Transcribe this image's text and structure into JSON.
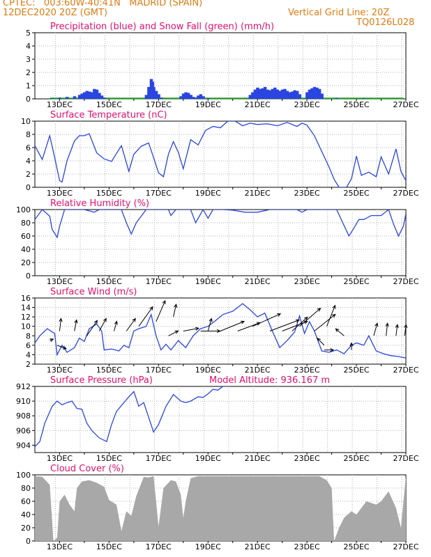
{
  "header": {
    "line1": "CPTEC:   003:60W-40:41N   MADRID (SPAIN)",
    "line2": "12DEC2020 20Z (GMT)",
    "grid_note": "Vertical Grid Line: 20Z",
    "code": "TQ0126L028"
  },
  "colors": {
    "header": "#e07a10",
    "title": "#e0106e",
    "series": "#2a45e0",
    "snow": "#1fa01f",
    "cloud": "#a8a8a8",
    "axis": "#000000",
    "grid": "#b0b0b0"
  },
  "x_labels": [
    "13DEC",
    "15DEC",
    "17DEC",
    "19DEC",
    "21DEC",
    "23DEC",
    "25DEC",
    "27DEC"
  ],
  "chart_data": [
    {
      "id": "precip",
      "type": "bar",
      "title": "Precipitation (blue) and Snow Fall (green) (mm/h)",
      "ylim": [
        0,
        5
      ],
      "yticks": [
        "0",
        "1",
        "2",
        "3",
        "4",
        "5"
      ],
      "x": [
        12.7,
        13.0,
        13.3,
        13.6,
        13.8,
        13.9,
        14.0,
        14.1,
        14.2,
        14.3,
        14.4,
        14.5,
        14.6,
        14.7,
        14.8,
        16.5,
        16.6,
        16.7,
        16.75,
        16.8,
        16.9,
        17.0,
        17.1,
        17.9,
        18.0,
        18.1,
        18.2,
        18.3,
        18.4,
        18.5,
        18.6,
        18.7,
        18.8,
        19.0,
        20.7,
        20.8,
        20.9,
        21.0,
        21.1,
        21.2,
        21.3,
        21.4,
        21.5,
        21.6,
        21.7,
        21.8,
        21.9,
        22.0,
        22.1,
        22.2,
        22.3,
        22.4,
        22.5,
        22.6,
        22.7,
        23.0,
        23.1,
        23.2,
        23.3,
        23.4,
        23.5,
        23.6,
        24.2,
        25.3
      ],
      "values": [
        0.05,
        0.1,
        0.15,
        0.2,
        0.3,
        0.4,
        0.5,
        0.6,
        0.55,
        0.5,
        0.75,
        0.7,
        0.45,
        0.25,
        0.1,
        0.3,
        0.9,
        1.5,
        1.3,
        0.9,
        0.6,
        0.35,
        0.1,
        0.2,
        0.4,
        0.5,
        0.45,
        0.3,
        0.15,
        0.1,
        0.25,
        0.35,
        0.2,
        0.05,
        0.3,
        0.5,
        0.7,
        0.85,
        0.75,
        0.8,
        0.9,
        0.7,
        0.65,
        0.75,
        0.85,
        0.7,
        0.6,
        0.7,
        0.75,
        0.6,
        0.5,
        0.55,
        0.65,
        0.6,
        0.35,
        0.5,
        0.7,
        0.8,
        0.9,
        0.85,
        0.75,
        0.4,
        0.08,
        0.05
      ],
      "snow": "flat near zero"
    },
    {
      "id": "temp",
      "type": "line",
      "title": "Surface Temperature (nC)",
      "ylim": [
        0,
        10
      ],
      "yticks": [
        "0",
        "2",
        "4",
        "6",
        "8",
        "10"
      ],
      "x": [
        12.0,
        12.3,
        12.6,
        12.8,
        13.0,
        13.1,
        13.3,
        13.6,
        13.8,
        14.0,
        14.2,
        14.5,
        14.8,
        15.1,
        15.5,
        15.8,
        16.0,
        16.3,
        16.6,
        16.8,
        17.0,
        17.2,
        17.4,
        17.6,
        17.8,
        18.0,
        18.3,
        18.6,
        18.9,
        19.2,
        19.5,
        19.8,
        20.1,
        20.4,
        20.7,
        21.0,
        21.4,
        21.8,
        22.2,
        22.6,
        22.8,
        23.0,
        23.3,
        23.6,
        23.9,
        24.1,
        24.3,
        24.6,
        24.8,
        25.0,
        25.2,
        25.5,
        25.8,
        26.0,
        26.3,
        26.6,
        26.8,
        27.0
      ],
      "values": [
        6.3,
        4.2,
        7.8,
        4.5,
        1.0,
        0.8,
        4.0,
        7.0,
        7.8,
        7.8,
        8.1,
        5.2,
        4.3,
        3.9,
        6.3,
        2.4,
        5.0,
        6.2,
        6.7,
        4.5,
        2.2,
        1.6,
        5.0,
        6.9,
        5.3,
        2.8,
        7.2,
        6.4,
        8.6,
        9.2,
        9.0,
        10.0,
        10.1,
        9.3,
        9.7,
        9.5,
        9.6,
        9.3,
        9.8,
        9.2,
        9.7,
        9.4,
        7.8,
        5.4,
        3.0,
        1.2,
        -0.2,
        -0.3,
        1.3,
        4.7,
        1.8,
        2.3,
        1.6,
        4.6,
        2.0,
        5.8,
        2.4,
        1.0
      ]
    },
    {
      "id": "rh",
      "type": "line",
      "title": "Relative Humidity (%)",
      "ylim": [
        0,
        100
      ],
      "yticks": [
        "0",
        "20",
        "40",
        "60",
        "80",
        "100"
      ],
      "x": [
        12.0,
        12.3,
        12.6,
        12.7,
        12.9,
        13.0,
        13.2,
        14.0,
        14.4,
        14.6,
        15.0,
        15.5,
        15.7,
        15.9,
        16.1,
        16.5,
        17.0,
        17.4,
        17.5,
        17.7,
        17.9,
        18.3,
        18.5,
        18.8,
        19.0,
        19.2,
        19.6,
        20.0,
        20.5,
        21.0,
        21.5,
        22.0,
        22.6,
        22.8,
        23.0,
        23.5,
        24.0,
        24.2,
        24.5,
        24.7,
        24.9,
        25.1,
        25.3,
        25.6,
        26.0,
        26.3,
        26.5,
        26.7,
        26.9,
        27.0
      ],
      "values": [
        85,
        100,
        90,
        70,
        58,
        75,
        100,
        100,
        96,
        100,
        100,
        100,
        80,
        63,
        80,
        100,
        100,
        100,
        91,
        100,
        100,
        100,
        80,
        100,
        87,
        100,
        100,
        99,
        96,
        96,
        100,
        100,
        100,
        96,
        100,
        100,
        100,
        100,
        76,
        60,
        72,
        85,
        85,
        91,
        91,
        100,
        78,
        60,
        75,
        94
      ]
    },
    {
      "id": "wind",
      "type": "line",
      "title": "Surface Wind (m/s)",
      "ylim": [
        2,
        16
      ],
      "yticks": [
        "2",
        "4",
        "6",
        "8",
        "10",
        "12",
        "14",
        "16"
      ],
      "x": [
        12.0,
        12.2,
        12.5,
        12.8,
        12.9,
        13.1,
        13.3,
        13.6,
        13.8,
        14.0,
        14.2,
        14.5,
        14.7,
        14.8,
        15.1,
        15.4,
        15.6,
        15.8,
        16.0,
        16.2,
        16.5,
        16.7,
        16.9,
        17.1,
        17.3,
        17.5,
        17.8,
        18.1,
        18.4,
        18.7,
        19.0,
        19.3,
        19.6,
        20.0,
        20.4,
        20.7,
        21.0,
        21.3,
        21.6,
        21.9,
        22.2,
        22.5,
        22.7,
        22.9,
        23.1,
        23.3,
        23.6,
        23.9,
        24.2,
        24.5,
        24.8,
        25.0,
        25.3,
        25.5,
        25.8,
        26.1,
        26.4,
        26.7,
        27.0
      ],
      "values": [
        6.5,
        8.0,
        9.5,
        8.5,
        4.0,
        6.0,
        4.5,
        5.5,
        7.5,
        6.8,
        9.5,
        10.5,
        9.0,
        5.0,
        5.2,
        4.8,
        6.0,
        5.5,
        9.0,
        9.5,
        10.0,
        12.5,
        8.0,
        5.0,
        6.2,
        5.0,
        7.0,
        5.5,
        8.0,
        9.5,
        10.0,
        11.2,
        12.5,
        13.2,
        14.8,
        13.5,
        12.0,
        12.8,
        9.0,
        5.5,
        7.0,
        8.8,
        12.2,
        8.5,
        11.0,
        9.0,
        4.8,
        4.5,
        5.0,
        4.2,
        6.0,
        6.5,
        6.0,
        8.0,
        4.8,
        4.2,
        3.8,
        3.6,
        3.3
      ]
    },
    {
      "id": "pressure",
      "type": "line",
      "title": "Surface Pressure (hPa)",
      "subtitle": "Model Altitude: 936.167 m",
      "ylim": [
        903,
        912
      ],
      "yticks": [
        "904",
        "906",
        "908",
        "910",
        "912"
      ],
      "x": [
        12.0,
        12.2,
        12.4,
        12.7,
        12.9,
        13.1,
        13.3,
        13.5,
        13.7,
        13.9,
        14.1,
        14.3,
        14.6,
        14.9,
        15.1,
        15.3,
        15.6,
        15.8,
        16.0,
        16.2,
        16.4,
        16.6,
        16.8,
        17.0,
        17.3,
        17.6,
        17.9,
        18.1,
        18.3,
        18.6,
        18.8,
        19.0,
        19.2,
        19.4,
        19.6,
        19.8
      ],
      "values": [
        903.8,
        904.5,
        907.0,
        909.3,
        910.0,
        909.5,
        909.8,
        910.0,
        909.0,
        908.9,
        907.0,
        906.0,
        905.0,
        904.5,
        906.8,
        908.6,
        909.8,
        910.6,
        911.3,
        909.3,
        909.8,
        907.8,
        905.8,
        906.8,
        909.3,
        910.9,
        910.0,
        909.8,
        910.0,
        910.6,
        910.5,
        911.0,
        911.6,
        911.5,
        912.0,
        912.5
      ]
    },
    {
      "id": "cloud",
      "type": "area",
      "title": "Cloud Cover (%)",
      "ylim": [
        0,
        100
      ],
      "yticks": [
        "0",
        "20",
        "40",
        "60",
        "80",
        "100"
      ],
      "x": [
        12.0,
        12.3,
        12.6,
        12.7,
        12.75,
        12.9,
        13.0,
        13.2,
        13.4,
        13.6,
        13.7,
        13.9,
        14.2,
        14.5,
        14.8,
        15.0,
        15.3,
        15.5,
        15.7,
        15.9,
        16.1,
        16.4,
        16.6,
        16.8,
        16.9,
        17.0,
        17.2,
        17.5,
        17.7,
        17.9,
        18.0,
        18.1,
        18.3,
        18.6,
        19.0,
        19.5,
        20.0,
        21.0,
        22.0,
        22.5,
        23.0,
        23.5,
        23.8,
        24.0,
        24.1,
        24.3,
        24.5,
        24.8,
        25.0,
        25.4,
        25.8,
        26.0,
        26.3,
        26.6,
        26.8,
        27.0
      ],
      "values": [
        98,
        97,
        85,
        30,
        0,
        5,
        60,
        70,
        55,
        45,
        80,
        90,
        92,
        88,
        82,
        62,
        55,
        15,
        45,
        38,
        68,
        97,
        96,
        98,
        60,
        22,
        80,
        92,
        90,
        70,
        35,
        60,
        95,
        98,
        98,
        98,
        98,
        98,
        98,
        98,
        98,
        98,
        92,
        80,
        0,
        20,
        35,
        45,
        40,
        60,
        55,
        60,
        75,
        50,
        20,
        98
      ]
    }
  ]
}
